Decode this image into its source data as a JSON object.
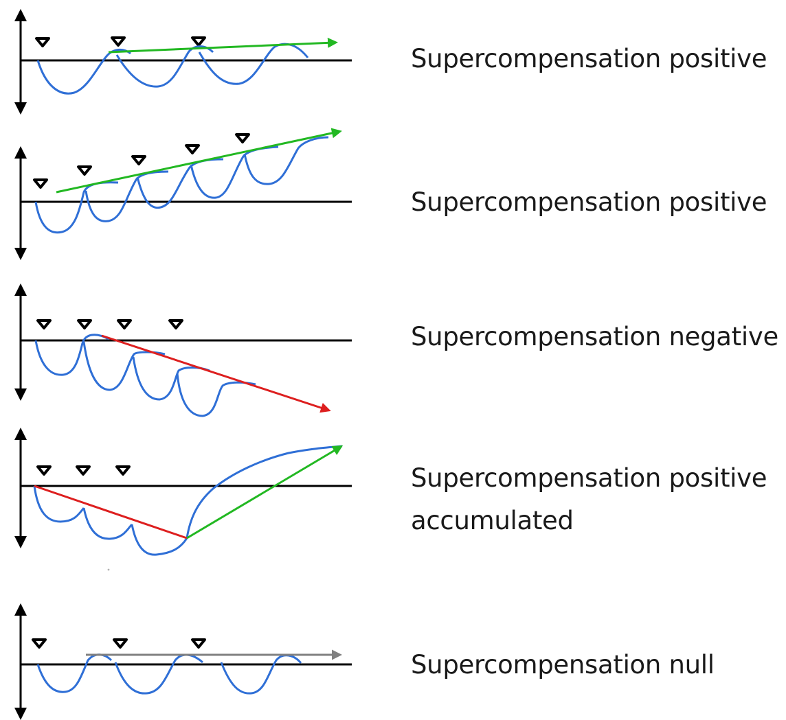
{
  "panels": [
    {
      "label": "Supercompensation positive",
      "trend": "positive",
      "trend_color": "#22b822"
    },
    {
      "label": "Supercompensation positive",
      "trend": "positive",
      "trend_color": "#22b822"
    },
    {
      "label": "Supercompensation negative",
      "trend": "negative",
      "trend_color": "#dd1f1f"
    },
    {
      "label_line1": "Supercompensation positive",
      "label_line2": "accumulated",
      "trend": "accumulated",
      "trend_colors": [
        "#dd1f1f",
        "#22b822"
      ]
    },
    {
      "label": "Supercompensation null",
      "trend": "null",
      "trend_color": "#808080"
    }
  ],
  "curve_color": "#2f6fd6",
  "axis_color": "#000000",
  "marker_icon": "training-session-triangle-icon"
}
